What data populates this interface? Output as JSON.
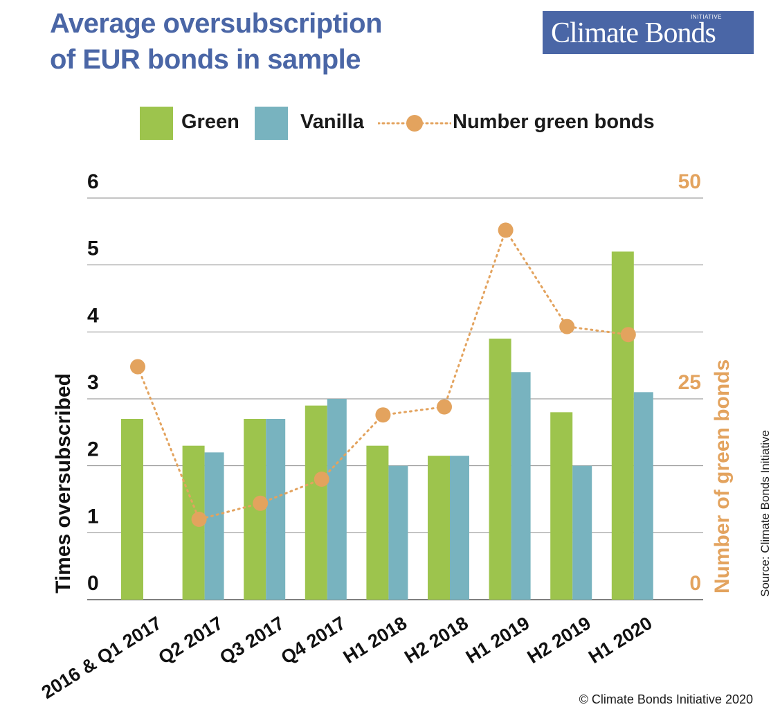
{
  "title": {
    "line1": "Average oversubscription",
    "line2": "of EUR bonds in sample"
  },
  "logo": {
    "text": "Climate Bonds",
    "small": "INITIATIVE"
  },
  "legend": {
    "green": "Green",
    "vanilla": "Vanilla",
    "number": "Number green bonds"
  },
  "source": "Source: Climate Bonds Initiative",
  "copyright": "© Climate Bonds Initiative 2020",
  "colors": {
    "green": "#9dc44d",
    "vanilla": "#78b3bf",
    "number": "#e3a35e",
    "title": "#4a66a6",
    "grid": "#888888"
  },
  "chart_data": {
    "type": "bar",
    "categories": [
      "2016 & Q1 2017",
      "Q2 2017",
      "Q3 2017",
      "Q4 2017",
      "H1 2018",
      "H2 2018",
      "H1 2019",
      "H2 2019",
      "H1 2020"
    ],
    "series": [
      {
        "name": "Green",
        "axis": "left",
        "type": "bar",
        "values": [
          2.7,
          2.3,
          2.7,
          2.9,
          2.3,
          2.15,
          3.9,
          2.8,
          5.2
        ]
      },
      {
        "name": "Vanilla",
        "axis": "left",
        "type": "bar",
        "values": [
          null,
          2.2,
          2.7,
          3.0,
          2.0,
          2.15,
          3.4,
          2.0,
          3.1
        ]
      },
      {
        "name": "Number green bonds",
        "axis": "right",
        "type": "line",
        "style": "dotted",
        "values": [
          29,
          10,
          12,
          15,
          23,
          24,
          46,
          34,
          33
        ]
      }
    ],
    "ylabel": "Times oversubscribed",
    "ylabel_right": "Number of green bonds",
    "ylim": [
      0,
      6
    ],
    "y_ticks": [
      0,
      1,
      2,
      3,
      4,
      5,
      6
    ],
    "ylim_right": [
      0,
      50
    ],
    "y_ticks_right": [
      0,
      25,
      50
    ],
    "grid": true
  }
}
